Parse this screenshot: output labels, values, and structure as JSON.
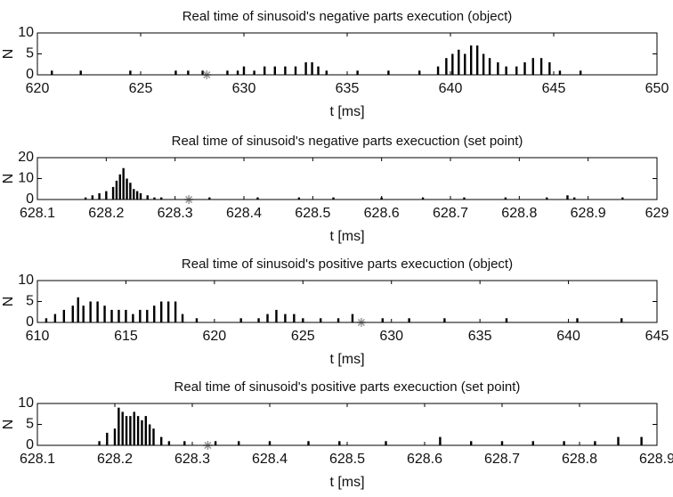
{
  "chart_data": [
    {
      "type": "bar",
      "title": "Real time of sinusoid's negative parts execution (object)",
      "x_label": "t [ms]",
      "y_label": "N",
      "color": "#000000",
      "xlim": [
        620,
        650
      ],
      "xticks": [
        620,
        625,
        630,
        635,
        640,
        645,
        650
      ],
      "ylim": [
        0,
        10
      ],
      "yticks": [
        0,
        5,
        10
      ],
      "grid": false,
      "x": [
        620.7,
        622.1,
        624.5,
        626.7,
        627.3,
        628.0,
        629.2,
        629.7,
        630.0,
        630.5,
        631.0,
        631.5,
        632.0,
        632.5,
        633.0,
        633.3,
        633.6,
        634.0,
        635.5,
        637.0,
        638.5,
        639.4,
        639.8,
        640.1,
        640.4,
        640.7,
        641.0,
        641.3,
        641.6,
        641.9,
        642.3,
        642.7,
        643.2,
        643.6,
        644.0,
        644.4,
        644.8,
        645.3,
        646.3
      ],
      "values": [
        1,
        1,
        1,
        1,
        1,
        1,
        1,
        1,
        2,
        1,
        2,
        2,
        2,
        2,
        3,
        3,
        2,
        1,
        1,
        1,
        1,
        2,
        4,
        5,
        6,
        5,
        7,
        7,
        5,
        4,
        3,
        2,
        2,
        3,
        4,
        4,
        3,
        1,
        1
      ],
      "marker_x": 628.2,
      "marker_y": 0,
      "marker_color": "#999999"
    },
    {
      "type": "bar",
      "title": "Real time of sinusoid's negative parts execuction (set point)",
      "x_label": "t [ms]",
      "y_label": "N",
      "color": "#000000",
      "xlim": [
        628.1,
        629
      ],
      "xticks": [
        628.1,
        628.2,
        628.3,
        628.4,
        628.5,
        628.6,
        628.7,
        628.8,
        628.9,
        629
      ],
      "ylim": [
        0,
        20
      ],
      "yticks": [
        0,
        10,
        20
      ],
      "grid": false,
      "x": [
        628.17,
        628.18,
        628.19,
        628.2,
        628.21,
        628.215,
        628.22,
        628.225,
        628.23,
        628.235,
        628.24,
        628.245,
        628.25,
        628.26,
        628.27,
        628.28,
        628.35,
        628.42,
        628.48,
        628.53,
        628.6,
        628.66,
        628.72,
        628.78,
        628.84,
        628.87,
        628.88,
        628.95
      ],
      "values": [
        1,
        2,
        3,
        4,
        6,
        9,
        12,
        15,
        10,
        8,
        5,
        4,
        3,
        2,
        1,
        1,
        1,
        1,
        1,
        1,
        1,
        1,
        1,
        1,
        1,
        2,
        1,
        1
      ],
      "marker_x": 628.32,
      "marker_y": 0,
      "marker_color": "#999999"
    },
    {
      "type": "bar",
      "title": "Real time of sinusoid's positive parts execuction (object)",
      "x_label": "t [ms]",
      "y_label": "N",
      "color": "#000000",
      "xlim": [
        610,
        645
      ],
      "xticks": [
        610,
        615,
        620,
        625,
        630,
        635,
        640,
        645
      ],
      "ylim": [
        0,
        10
      ],
      "yticks": [
        0,
        5,
        10
      ],
      "grid": false,
      "x": [
        610.5,
        611,
        611.5,
        612,
        612.3,
        612.6,
        613,
        613.4,
        613.8,
        614.2,
        614.6,
        615,
        615.4,
        615.8,
        616.2,
        616.6,
        617,
        617.4,
        617.8,
        618.2,
        619,
        621.5,
        622.5,
        623,
        623.5,
        624,
        624.5,
        625,
        626,
        627,
        627.8,
        629.5,
        631,
        633,
        636.5,
        640.5,
        643
      ],
      "values": [
        1,
        2,
        3,
        4,
        6,
        4,
        5,
        5,
        4,
        3,
        3,
        3,
        2,
        3,
        3,
        4,
        5,
        5,
        5,
        2,
        1,
        1,
        1,
        2,
        3,
        2,
        2,
        1,
        1,
        1,
        2,
        1,
        1,
        1,
        1,
        1,
        1
      ],
      "marker_x": 628.3,
      "marker_y": 0,
      "marker_color": "#999999"
    },
    {
      "type": "bar",
      "title": "Real time of sinusoid's positive parts execuction (set point)",
      "x_label": "t [ms]",
      "y_label": "N",
      "color": "#000000",
      "xlim": [
        628.1,
        628.9
      ],
      "xticks": [
        628.1,
        628.2,
        628.3,
        628.4,
        628.5,
        628.6,
        628.7,
        628.8,
        628.9
      ],
      "ylim": [
        0,
        10
      ],
      "yticks": [
        0,
        5,
        10
      ],
      "grid": false,
      "x": [
        628.18,
        628.19,
        628.2,
        628.205,
        628.21,
        628.215,
        628.22,
        628.225,
        628.23,
        628.235,
        628.24,
        628.245,
        628.25,
        628.26,
        628.27,
        628.29,
        628.33,
        628.36,
        628.4,
        628.45,
        628.49,
        628.55,
        628.62,
        628.66,
        628.7,
        628.74,
        628.78,
        628.82,
        628.85,
        628.88
      ],
      "values": [
        1,
        3,
        4,
        9,
        8,
        7,
        7,
        8,
        7,
        6,
        7,
        5,
        4,
        2,
        1,
        1,
        1,
        1,
        1,
        1,
        1,
        1,
        2,
        1,
        1,
        1,
        1,
        1,
        2,
        2
      ],
      "marker_x": 628.32,
      "marker_y": 0,
      "marker_color": "#999999"
    }
  ]
}
